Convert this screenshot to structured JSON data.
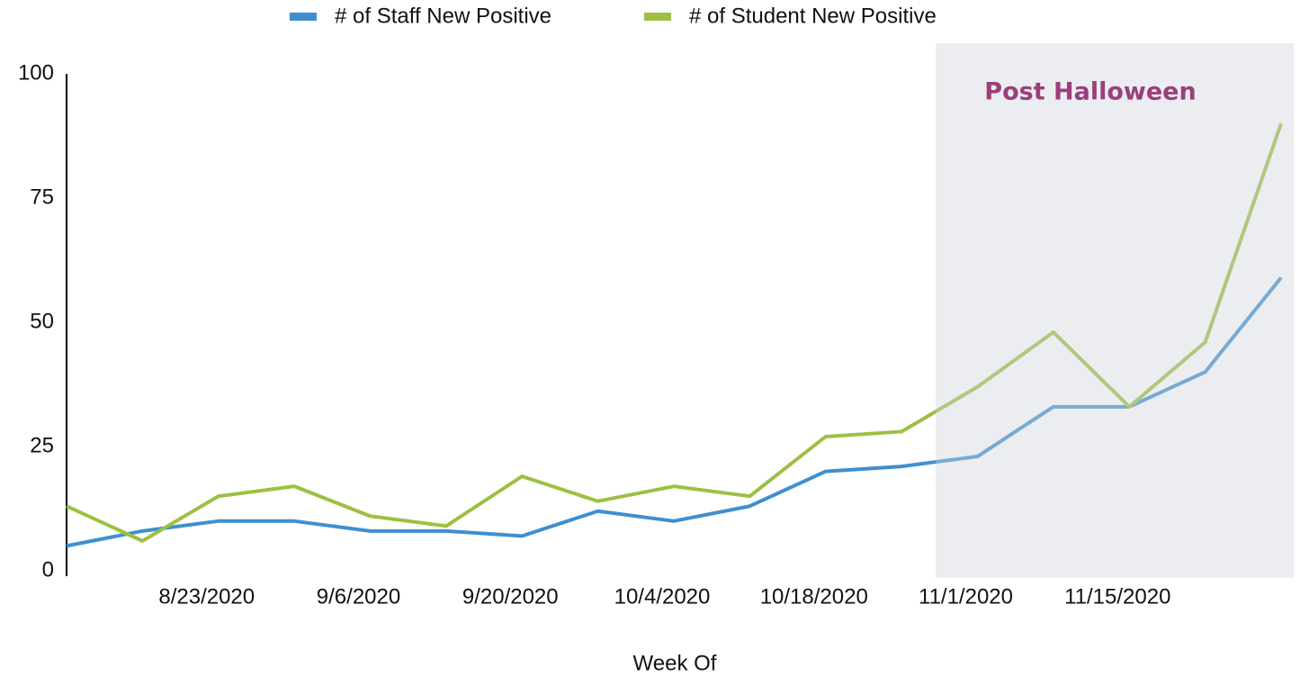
{
  "chart_data": {
    "type": "line",
    "x_label": "Week Of",
    "annotation": "Post Halloween",
    "categories": [
      null,
      null,
      "8/23/2020",
      null,
      "9/6/2020",
      null,
      "9/20/2020",
      null,
      "10/4/2020",
      null,
      "10/18/2020",
      null,
      "11/1/2020",
      null,
      "11/15/2020",
      null,
      null
    ],
    "series": [
      {
        "name": "# of Staff New Positive",
        "color": "#3f8fd0",
        "values": [
          5,
          8,
          10,
          10,
          8,
          8,
          7,
          12,
          10,
          13,
          20,
          21,
          23,
          33,
          33,
          40,
          59
        ]
      },
      {
        "name": "# of Student New Positive",
        "color": "#9dc041",
        "values": [
          13,
          6,
          15,
          17,
          11,
          9,
          19,
          14,
          17,
          15,
          27,
          28,
          37,
          48,
          33,
          46,
          90
        ]
      }
    ],
    "ylim": [
      0,
      100
    ],
    "yticks": [
      0,
      25,
      50,
      75,
      100
    ],
    "grid": false,
    "legend": "top"
  }
}
